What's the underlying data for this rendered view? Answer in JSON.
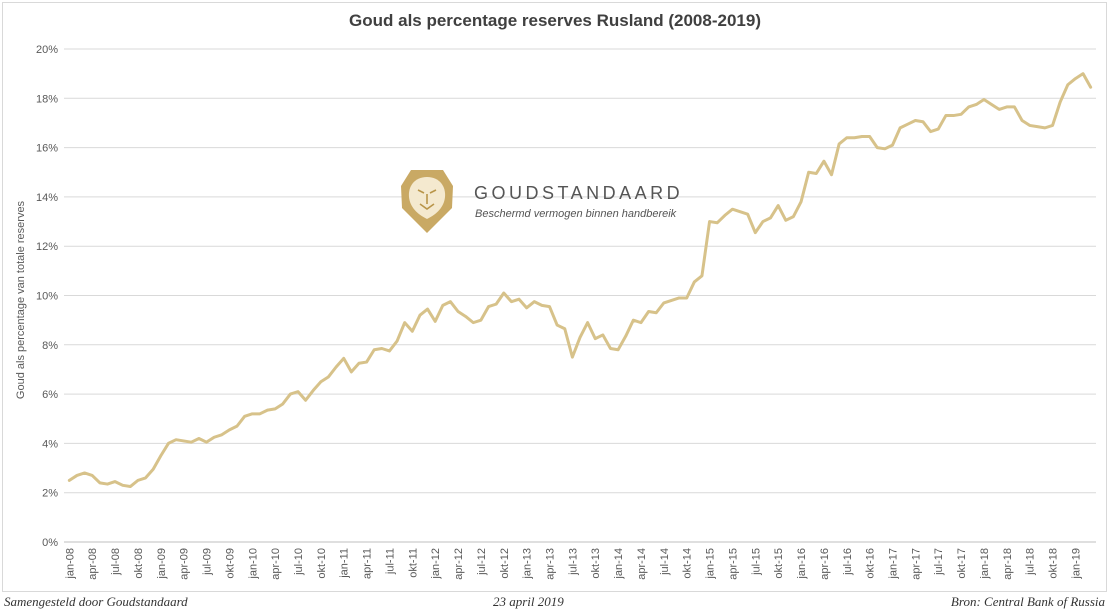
{
  "chart_data": {
    "type": "line",
    "title": "Goud als percentage reserves Rusland (2008-2019)",
    "ylabel": "Goud als percentage van totale reserves",
    "xlabel": "",
    "ylim": [
      0,
      20
    ],
    "y_ticks": [
      "0%",
      "2%",
      "4%",
      "6%",
      "8%",
      "10%",
      "12%",
      "14%",
      "16%",
      "18%",
      "20%"
    ],
    "y_tick_values": [
      0,
      2,
      4,
      6,
      8,
      10,
      12,
      14,
      16,
      18,
      20
    ],
    "x_tick_labels": [
      "jan-08",
      "apr-08",
      "jul-08",
      "okt-08",
      "jan-09",
      "apr-09",
      "jul-09",
      "okt-09",
      "jan-10",
      "apr-10",
      "jul-10",
      "okt-10",
      "jan-11",
      "apr-11",
      "jul-11",
      "okt-11",
      "jan-12",
      "apr-12",
      "jul-12",
      "okt-12",
      "jan-13",
      "apr-13",
      "jul-13",
      "okt-13",
      "jan-14",
      "apr-14",
      "jul-14",
      "okt-14",
      "jan-15",
      "apr-15",
      "jul-15",
      "okt-15",
      "jan-16",
      "apr-16",
      "jul-16",
      "okt-16",
      "jan-17",
      "apr-17",
      "jul-17",
      "okt-17",
      "jan-18",
      "apr-18",
      "jul-18",
      "okt-18",
      "jan-19"
    ],
    "grid": true,
    "line_color": "#d7c28a",
    "series": [
      {
        "values": [
          2.5,
          2.7,
          2.8,
          2.7,
          2.4,
          2.35,
          2.45,
          2.3,
          2.25,
          2.5,
          2.6,
          2.95,
          3.5,
          4.0,
          4.15,
          4.1,
          4.05,
          4.2,
          4.05,
          4.25,
          4.35,
          4.55,
          4.7,
          5.1,
          5.2,
          5.2,
          5.35,
          5.4,
          5.6,
          6.0,
          6.1,
          5.75,
          6.15,
          6.5,
          6.7,
          7.1,
          7.45,
          6.9,
          7.25,
          7.3,
          7.8,
          7.85,
          7.75,
          8.15,
          8.9,
          8.55,
          9.2,
          9.45,
          8.95,
          9.6,
          9.75,
          9.35,
          9.15,
          8.9,
          9.0,
          9.55,
          9.65,
          10.1,
          9.75,
          9.85,
          9.5,
          9.75,
          9.6,
          9.55,
          8.8,
          8.65,
          7.5,
          8.3,
          8.9,
          8.25,
          8.4,
          7.85,
          7.8,
          8.35,
          9.0,
          8.9,
          9.35,
          9.3,
          9.7,
          9.8,
          9.9,
          9.9,
          10.55,
          10.8,
          13.0,
          12.95,
          13.25,
          13.5,
          13.4,
          13.3,
          12.55,
          13.0,
          13.15,
          13.65,
          13.05,
          13.2,
          13.8,
          15.0,
          14.95,
          15.45,
          14.9,
          16.15,
          16.4,
          16.4,
          16.45,
          16.45,
          16.0,
          15.95,
          16.1,
          16.8,
          16.95,
          17.1,
          17.05,
          16.65,
          16.75,
          17.3,
          17.3,
          17.35,
          17.65,
          17.75,
          17.95,
          17.75,
          17.55,
          17.65,
          17.65,
          17.1,
          16.9,
          16.85,
          16.8,
          16.9,
          17.85,
          18.55,
          18.8,
          19.0,
          18.45
        ]
      }
    ]
  },
  "watermark": {
    "brand": "GOUDSTANDAARD",
    "tagline": "Beschermd vermogen binnen handbereik",
    "logo_icon": "lion-shield-icon",
    "logo_color": "#c9a964"
  },
  "footer": {
    "left": "Samengesteld door Goudstandaard",
    "middle": "23 april 2019",
    "right": "Bron: Central Bank of Russia"
  }
}
